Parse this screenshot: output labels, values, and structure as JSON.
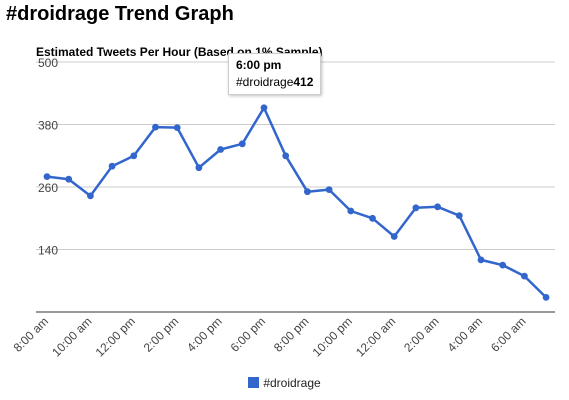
{
  "page": {
    "title": "#droidrage Trend Graph"
  },
  "chart_data": {
    "type": "line",
    "title": "Estimated Tweets Per Hour (Based on 1% Sample)",
    "xlabel": "",
    "ylabel": "",
    "ylim": [
      20,
      500
    ],
    "yticks": [
      500,
      380,
      260,
      140
    ],
    "xtick_labels": [
      "8:00 am",
      "10:00 am",
      "12:00 pm",
      "2:00 pm",
      "4:00 pm",
      "6:00 pm",
      "8:00 pm",
      "10:00 pm",
      "12:00 am",
      "2:00 am",
      "4:00 am",
      "6:00 am"
    ],
    "legend_position": "bottom",
    "grid": true,
    "series": [
      {
        "name": "#droidrage",
        "color": "#3366cc",
        "values": [
          280,
          275,
          243,
          300,
          320,
          375,
          374,
          297,
          332,
          343,
          412,
          320,
          251,
          255,
          214,
          200,
          165,
          220,
          222,
          205,
          120,
          110,
          89,
          48
        ]
      }
    ]
  },
  "tooltip": {
    "time": "6:00 pm",
    "series_name": "#droidrage",
    "value": "412"
  }
}
